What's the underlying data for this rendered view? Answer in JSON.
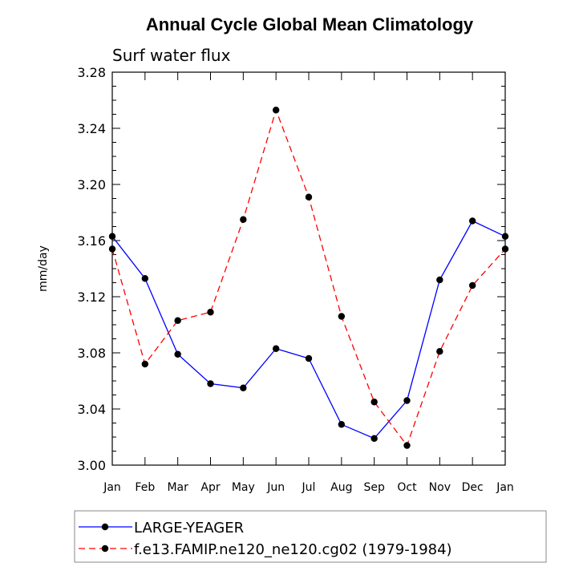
{
  "chart_data": {
    "type": "line",
    "title": "Annual Cycle Global Mean Climatology",
    "subtitle": "Surf water flux",
    "xlabel": "",
    "ylabel": "mm/day",
    "categories": [
      "Jan",
      "Feb",
      "Mar",
      "Apr",
      "May",
      "Jun",
      "Jul",
      "Aug",
      "Sep",
      "Oct",
      "Nov",
      "Dec",
      "Jan"
    ],
    "ylim": [
      3.0,
      3.28
    ],
    "yticks": [
      "3.00",
      "3.04",
      "3.08",
      "3.12",
      "3.16",
      "3.20",
      "3.24",
      "3.28"
    ],
    "ytick_values": [
      3.0,
      3.04,
      3.08,
      3.12,
      3.16,
      3.2,
      3.24,
      3.28
    ],
    "legend_position": "bottom",
    "series": [
      {
        "name": "LARGE-YEAGER",
        "color": "#0000ff",
        "style": "solid",
        "values": [
          3.163,
          3.133,
          3.079,
          3.058,
          3.055,
          3.083,
          3.076,
          3.029,
          3.019,
          3.046,
          3.132,
          3.174,
          3.163
        ]
      },
      {
        "name": "f.e13.FAMIP.ne120_ne120.cg02 (1979-1984)",
        "color": "#ff0000",
        "style": "dashed",
        "values": [
          3.154,
          3.072,
          3.103,
          3.109,
          3.175,
          3.253,
          3.191,
          3.106,
          3.045,
          3.014,
          3.081,
          3.128,
          3.154
        ]
      }
    ]
  }
}
